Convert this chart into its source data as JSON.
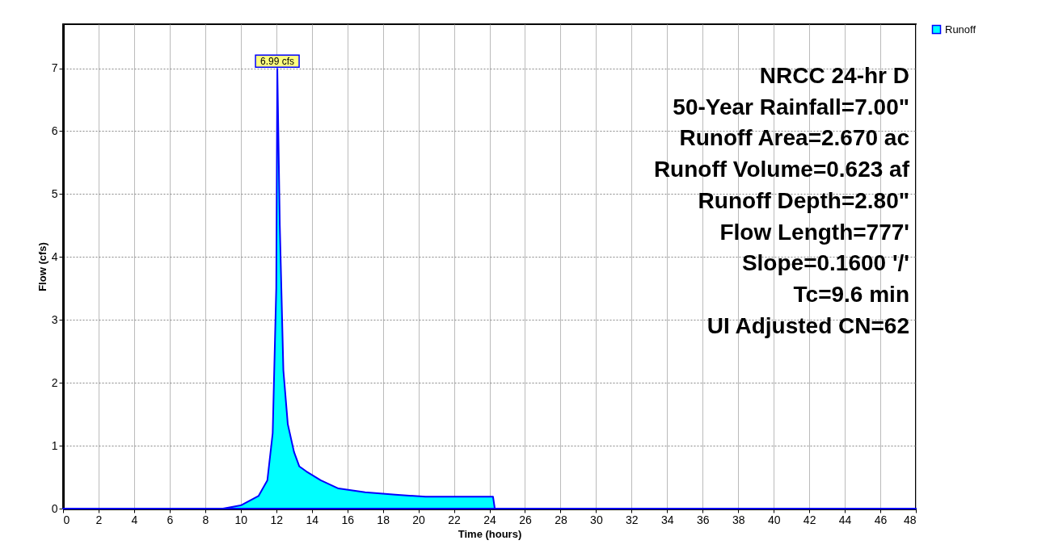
{
  "chart_data": {
    "type": "area",
    "xlabel": "Time  (hours)",
    "ylabel": "Flow  (cfs)",
    "x": [
      0,
      9,
      10,
      11,
      11.5,
      11.8,
      12.0,
      12.06,
      12.2,
      12.4,
      12.65,
      13.0,
      13.3,
      13.7,
      14.5,
      15.5,
      17,
      18.7,
      20.4,
      22,
      23.9,
      24.2,
      24.3,
      48
    ],
    "series": [
      {
        "name": "Runoff",
        "color": "#00ffff",
        "values": [
          0,
          0,
          0.05,
          0.2,
          0.45,
          1.2,
          3.5,
          6.99,
          4.5,
          2.2,
          1.34,
          0.9,
          0.67,
          0.59,
          0.45,
          0.32,
          0.26,
          0.22,
          0.19,
          0.19,
          0.19,
          0.19,
          0,
          0
        ]
      }
    ],
    "xlim": [
      0,
      48
    ],
    "xticks": [
      0,
      2,
      4,
      6,
      8,
      10,
      12,
      14,
      16,
      18,
      20,
      22,
      24,
      26,
      28,
      30,
      32,
      34,
      36,
      38,
      40,
      42,
      44,
      46,
      48
    ],
    "ylim": [
      0,
      7.7
    ],
    "yticks": [
      0,
      1,
      2,
      3,
      4,
      5,
      6,
      7
    ],
    "grid": true,
    "legend": "top right",
    "annotations": [
      {
        "text": "6.99 cfs",
        "x": 12.06,
        "y": 6.99
      },
      "NRCC 24-hr D",
      "50-Year Rainfall=7.00\"",
      "Runoff Area=2.670 ac",
      "Runoff Volume=0.623 af",
      "Runoff Depth=2.80\"",
      "Flow Length=777'",
      "Slope=0.1600 '/'",
      "Tc=9.6 min",
      "UI Adjusted CN=62"
    ]
  }
}
